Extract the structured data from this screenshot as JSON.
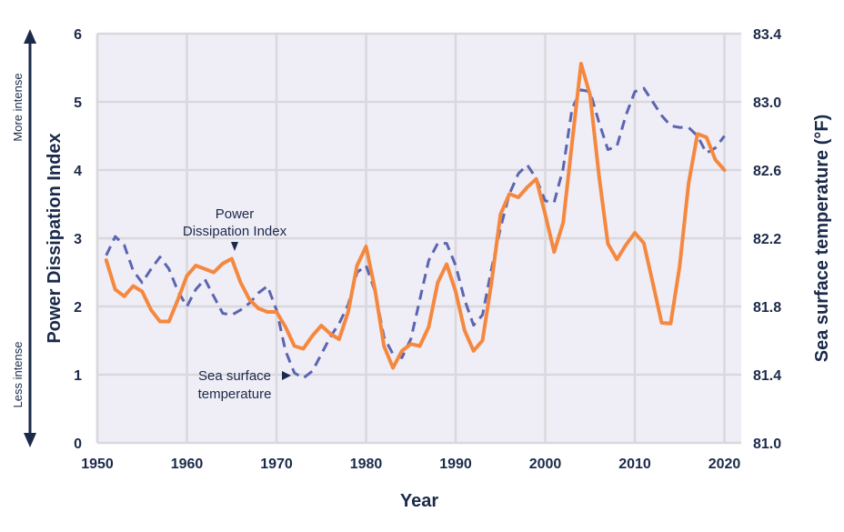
{
  "chart_data": {
    "type": "line",
    "xlabel": "Year",
    "ylabel_left": "Power Dissipation Index",
    "ylabel_right": "Sea surface temperature (°F)",
    "xlim": [
      1950,
      2022
    ],
    "ylim_left": [
      0,
      6
    ],
    "ylim_right": [
      81.0,
      83.4
    ],
    "x_ticks": [
      "1950",
      "1960",
      "1970",
      "1980",
      "1990",
      "2000",
      "2010",
      "2020"
    ],
    "y_ticks_left": [
      "0",
      "1",
      "2",
      "3",
      "4",
      "5",
      "6"
    ],
    "y_ticks_right": [
      "81.0",
      "81.4",
      "81.8",
      "82.2",
      "82.6",
      "83.0",
      "83.4"
    ],
    "grid": true,
    "intensity_labels": {
      "top": "More intense",
      "bottom": "Less intense"
    },
    "x": [
      1951,
      1952,
      1953,
      1954,
      1955,
      1956,
      1957,
      1958,
      1959,
      1960,
      1961,
      1962,
      1963,
      1964,
      1965,
      1966,
      1967,
      1968,
      1969,
      1970,
      1971,
      1972,
      1973,
      1974,
      1975,
      1976,
      1977,
      1978,
      1979,
      1980,
      1981,
      1982,
      1983,
      1984,
      1985,
      1986,
      1987,
      1988,
      1989,
      1990,
      1991,
      1992,
      1993,
      1994,
      1995,
      1996,
      1997,
      1998,
      1999,
      2000,
      2001,
      2002,
      2003,
      2004,
      2005,
      2006,
      2007,
      2008,
      2009,
      2010,
      2011,
      2012,
      2013,
      2014,
      2015,
      2016,
      2017,
      2018,
      2019,
      2020
    ],
    "series": [
      {
        "name": "Power Dissipation Index",
        "axis": "left",
        "style": "solid",
        "color": "#f5883f",
        "annotation": "Power Dissipation Index",
        "values": [
          2.68,
          2.25,
          2.15,
          2.3,
          2.22,
          1.95,
          1.78,
          1.78,
          2.1,
          2.45,
          2.6,
          2.55,
          2.5,
          2.63,
          2.7,
          2.35,
          2.1,
          1.97,
          1.92,
          1.92,
          1.7,
          1.42,
          1.38,
          1.57,
          1.72,
          1.6,
          1.52,
          1.92,
          2.6,
          2.88,
          2.25,
          1.42,
          1.1,
          1.35,
          1.45,
          1.42,
          1.7,
          2.35,
          2.62,
          2.22,
          1.65,
          1.35,
          1.5,
          2.35,
          3.35,
          3.65,
          3.6,
          3.75,
          3.87,
          3.35,
          2.8,
          3.23,
          4.4,
          5.56,
          5.1,
          3.92,
          2.92,
          2.69,
          2.9,
          3.08,
          2.93,
          2.35,
          1.76,
          1.75,
          2.59,
          3.8,
          4.53,
          4.48,
          4.15,
          4.0
        ]
      },
      {
        "name": "Sea surface temperature",
        "axis": "right",
        "style": "dashed",
        "color": "#5b65b0",
        "annotation": "Sea surface temperature",
        "values": [
          82.1,
          82.21,
          82.16,
          82.01,
          81.94,
          82.02,
          82.09,
          82.02,
          81.89,
          81.8,
          81.9,
          81.96,
          81.86,
          81.76,
          81.75,
          81.78,
          81.82,
          81.88,
          81.92,
          81.78,
          81.54,
          81.41,
          81.38,
          81.42,
          81.52,
          81.62,
          81.7,
          81.81,
          82.0,
          82.04,
          81.89,
          81.62,
          81.52,
          81.5,
          81.61,
          81.84,
          82.07,
          82.17,
          82.17,
          82.04,
          81.84,
          81.69,
          81.75,
          82.02,
          82.26,
          82.46,
          82.58,
          82.63,
          82.55,
          82.42,
          82.41,
          82.61,
          82.96,
          83.07,
          83.06,
          82.88,
          82.72,
          82.74,
          82.92,
          83.06,
          83.08,
          83.0,
          82.92,
          82.86,
          82.85,
          82.85,
          82.8,
          82.7,
          82.73,
          82.8
        ]
      }
    ],
    "annotations": {
      "pdi_line1": "Power",
      "pdi_line2": "Dissipation Index",
      "sst_line1": "Sea surface",
      "sst_line2": "temperature"
    },
    "colors": {
      "plot_background": "#efedf6",
      "grid": "#d9d8dc",
      "text": "#1b2a4a"
    }
  }
}
